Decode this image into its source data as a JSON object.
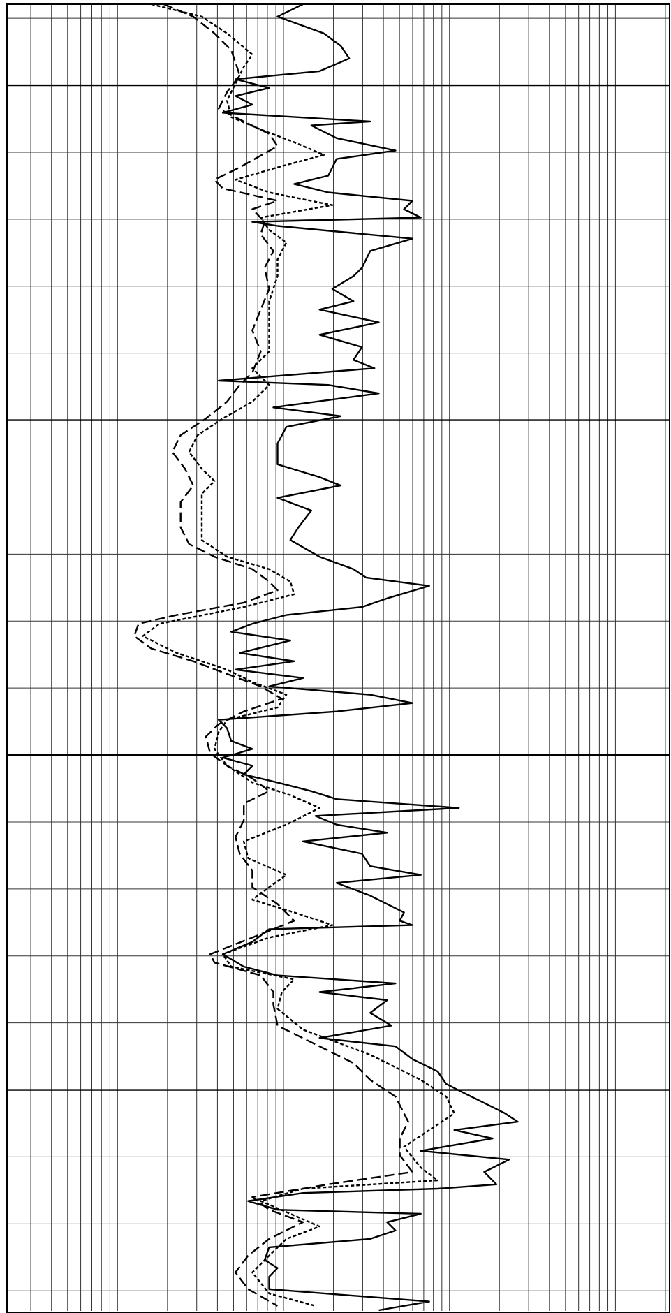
{
  "chart_data": {
    "type": "well_log",
    "xscale": "log",
    "xlim": [
      0.22,
      2100
    ],
    "xticks": [
      0.3,
      0.4,
      0.5,
      0.6,
      0.7,
      0.8,
      0.9,
      1,
      2,
      3,
      4,
      5,
      6,
      7,
      8,
      9,
      10,
      20,
      30,
      40,
      50,
      60,
      70,
      80,
      90,
      100,
      200,
      300,
      400,
      500,
      600,
      700,
      800,
      900,
      1000,
      2000
    ],
    "ylim": [
      8,
      203
    ],
    "yreversed": true,
    "yticks": [
      10,
      20,
      30,
      40,
      50,
      60,
      70,
      80,
      90,
      100,
      110,
      120,
      130,
      140,
      150,
      160,
      170,
      180,
      190,
      200
    ],
    "ygrid_major": [
      20,
      70,
      120,
      170
    ],
    "grid": true,
    "series": [
      {
        "color": "#000000",
        "style": "solid",
        "depth": [
          7.9,
          9.75,
          12.25,
          14.1,
          16.0,
          17.9,
          19.1,
          20.4,
          21.6,
          22.9,
          24.1,
          25.4,
          26.0,
          27.9,
          29.75,
          31.0,
          33.5,
          34.75,
          36.0,
          37.25,
          38.5,
          39.75,
          40.4,
          41.0,
          42.9,
          44.75,
          47.25,
          48.5,
          50.4,
          52.25,
          53.5,
          55.4,
          57.25,
          59.1,
          61.0,
          62.25,
          64.1,
          64.75,
          66.0,
          68.1,
          69.4,
          71.0,
          73.5,
          76.6,
          78.5,
          79.75,
          81.6,
          83.5,
          86.0,
          87.9,
          90.4,
          92.25,
          93.5,
          94.75,
          96.6,
          97.9,
          99.1,
          100.4,
          101.6,
          102.9,
          104.75,
          106.0,
          107.25,
          108.5,
          109.75,
          111.0,
          112.25,
          113.5,
          114.75,
          116.0,
          117.9,
          119.1,
          120.4,
          121.6,
          122.9,
          124.1,
          125.4,
          126.6,
          127.9,
          129.1,
          130.4,
          131.6,
          132.9,
          134.75,
          136.6,
          137.9,
          139.1,
          141.0,
          143.5,
          144.75,
          145.4,
          146.0,
          147.9,
          149.75,
          151.6,
          152.9,
          154.1,
          155.4,
          156.6,
          158.5,
          160.4,
          162.25,
          163.5,
          165.4,
          167.25,
          169.1,
          170.4,
          172.25,
          173.5,
          174.75,
          176.0,
          177.25,
          179.1,
          180.4,
          182.25,
          184.1,
          184.75,
          185.4,
          186.6,
          187.9,
          188.5,
          189.75,
          191.0,
          192.25,
          193.5,
          195.4,
          196.6,
          197.9,
          199.75,
          201.6,
          202.9
        ],
        "values": [
          13.1,
          9.21,
          17.5,
          22.1,
          24.9,
          16.5,
          5.14,
          8.2,
          5.14,
          6.49,
          4.31,
          33.3,
          14.7,
          20.9,
          47.3,
          20.9,
          18.6,
          11.6,
          18.6,
          59.8,
          53.2,
          67.2,
          6.49,
          9.21,
          59.8,
          33.3,
          29.7,
          26.4,
          19.7,
          26.4,
          16.5,
          37.5,
          16.5,
          29.7,
          26.4,
          35.3,
          4.07,
          18.6,
          37.5,
          8.69,
          22.1,
          10.4,
          9.21,
          9.21,
          16.5,
          22.1,
          9.21,
          14.7,
          12.3,
          11.0,
          16.5,
          26.4,
          31.4,
          75.5,
          42.1,
          29.7,
          10.4,
          6.49,
          4.84,
          11.0,
          5.45,
          11.6,
          5.14,
          13.1,
          8.2,
          33.3,
          59.8,
          20.9,
          4.07,
          4.57,
          4.84,
          6.49,
          4.31,
          6.49,
          5.77,
          9.21,
          14.7,
          20.9,
          114,
          15.6,
          20.9,
          42.1,
          13.1,
          29.7,
          33.3,
          67.2,
          20.9,
          33.3,
          53.2,
          50.2,
          59.8,
          8.2,
          6.49,
          4.31,
          5.77,
          9.21,
          47.3,
          16.5,
          42.1,
          33.3,
          44.7,
          16.5,
          47.3,
          59.8,
          84.9,
          95.5,
          121,
          171,
          216,
          258,
          107,
          182,
          67.2,
          229,
          162,
          192,
          84.9,
          13.1,
          6.12,
          9.21,
          67.2,
          42.1,
          47.3,
          33.3,
          8.2,
          7.7,
          9.21,
          8.2,
          8.2,
          75.5,
          37.5
        ]
      },
      {
        "color": "#000000",
        "style": "dashed",
        "depth": [
          7.9,
          9.75,
          12.25,
          14.75,
          16.6,
          18.5,
          21.0,
          23.5,
          25.4,
          27.25,
          29.1,
          32.25,
          34.1,
          35.4,
          37.25,
          38.5,
          40.4,
          42.25,
          44.75,
          47.25,
          50.4,
          53.5,
          56.6,
          59.75,
          62.9,
          64.75,
          67.25,
          69.75,
          72.25,
          74.75,
          77.25,
          79.75,
          82.25,
          86.0,
          88.5,
          90.4,
          92.25,
          94.1,
          95.4,
          97.25,
          99.1,
          100.4,
          102.25,
          104.1,
          106.0,
          107.9,
          109.75,
          111.6,
          113.5,
          115.4,
          117.25,
          119.75,
          121.6,
          123.5,
          125.4,
          127.25,
          129.75,
          132.25,
          134.75,
          137.25,
          139.75,
          142.25,
          144.75,
          147.25,
          149.75,
          151.0,
          152.9,
          155.4,
          157.25,
          160.4,
          163.5,
          166.0,
          168.5,
          171.0,
          174.75,
          177.25,
          179.75,
          182.25,
          184.1,
          186.0,
          187.9,
          189.75,
          192.25,
          194.75,
          197.25,
          199.75,
          202.25
        ],
        "values": [
          1.9,
          2.86,
          3.84,
          4.84,
          5.14,
          5.45,
          4.57,
          4.07,
          5.77,
          8.2,
          9.21,
          5.45,
          3.84,
          4.31,
          9.21,
          6.49,
          7.7,
          7.29,
          8.69,
          7.7,
          8.2,
          7.29,
          6.49,
          7.29,
          6.49,
          5.45,
          4.57,
          3.41,
          2.4,
          2.14,
          2.55,
          2.86,
          2.4,
          2.4,
          2.7,
          3.84,
          6.49,
          8.2,
          9.21,
          5.77,
          2.27,
          1.34,
          1.26,
          1.6,
          2.86,
          4.57,
          7.29,
          9.77,
          5.77,
          4.07,
          3.41,
          3.62,
          4.57,
          6.49,
          8.2,
          5.77,
          5.77,
          5.14,
          5.45,
          6.49,
          6.49,
          9.21,
          11.6,
          6.49,
          3.62,
          3.84,
          7.29,
          8.69,
          8.69,
          9.21,
          16.5,
          26.4,
          33.3,
          47.3,
          56.4,
          50.2,
          50.2,
          59.8,
          18.6,
          6.49,
          8.2,
          13.1,
          8.2,
          6.12,
          5.14,
          6.12,
          9.21
        ]
      },
      {
        "color": "#000000",
        "style": "dotted",
        "depth": [
          7.9,
          9.75,
          12.25,
          15.4,
          17.25,
          19.75,
          22.25,
          24.75,
          26.6,
          28.5,
          30.4,
          32.25,
          34.1,
          36.0,
          37.9,
          39.75,
          41.6,
          43.5,
          46.0,
          48.5,
          52.25,
          56.0,
          59.75,
          62.25,
          64.75,
          67.25,
          69.75,
          72.25,
          74.75,
          77.25,
          79.1,
          81.0,
          84.75,
          87.9,
          90.4,
          92.25,
          94.1,
          96.0,
          97.9,
          100.4,
          102.25,
          104.75,
          107.25,
          109.1,
          111.0,
          112.9,
          114.75,
          116.6,
          119.1,
          121.6,
          124.1,
          126.0,
          127.9,
          130.4,
          132.9,
          135.4,
          137.9,
          139.75,
          141.6,
          143.5,
          145.4,
          147.25,
          149.75,
          151.6,
          153.5,
          155.4,
          157.9,
          161.0,
          164.75,
          168.5,
          171.0,
          173.5,
          176.0,
          178.5,
          181.6,
          183.5,
          184.75,
          186.6,
          188.5,
          190.4,
          192.25,
          194.75,
          197.25,
          200.4,
          202.25
        ],
        "values": [
          1.6,
          3.22,
          4.57,
          6.49,
          5.77,
          5.14,
          4.57,
          4.84,
          7.29,
          11.6,
          17.5,
          9.21,
          5.14,
          8.2,
          19.7,
          7.29,
          8.2,
          10.4,
          9.21,
          9.21,
          8.2,
          8.2,
          8.2,
          6.49,
          8.2,
          6.49,
          4.31,
          3.04,
          2.7,
          3.22,
          3.84,
          3.22,
          3.22,
          3.22,
          4.57,
          8.2,
          11.0,
          11.6,
          5.77,
          1.79,
          1.42,
          2.27,
          4.57,
          6.49,
          10.4,
          9.21,
          4.57,
          4.07,
          3.84,
          4.57,
          6.49,
          11.0,
          16.5,
          10.4,
          5.77,
          6.12,
          10.4,
          8.2,
          6.49,
          11.6,
          19.7,
          8.2,
          4.31,
          4.84,
          11.6,
          9.77,
          9.21,
          13.1,
          33.3,
          67.2,
          95.5,
          107,
          75.5,
          53.2,
          67.2,
          84.9,
          13.1,
          7.29,
          11.0,
          16.5,
          10.4,
          8.2,
          6.49,
          8.2,
          15.6
        ]
      }
    ]
  }
}
